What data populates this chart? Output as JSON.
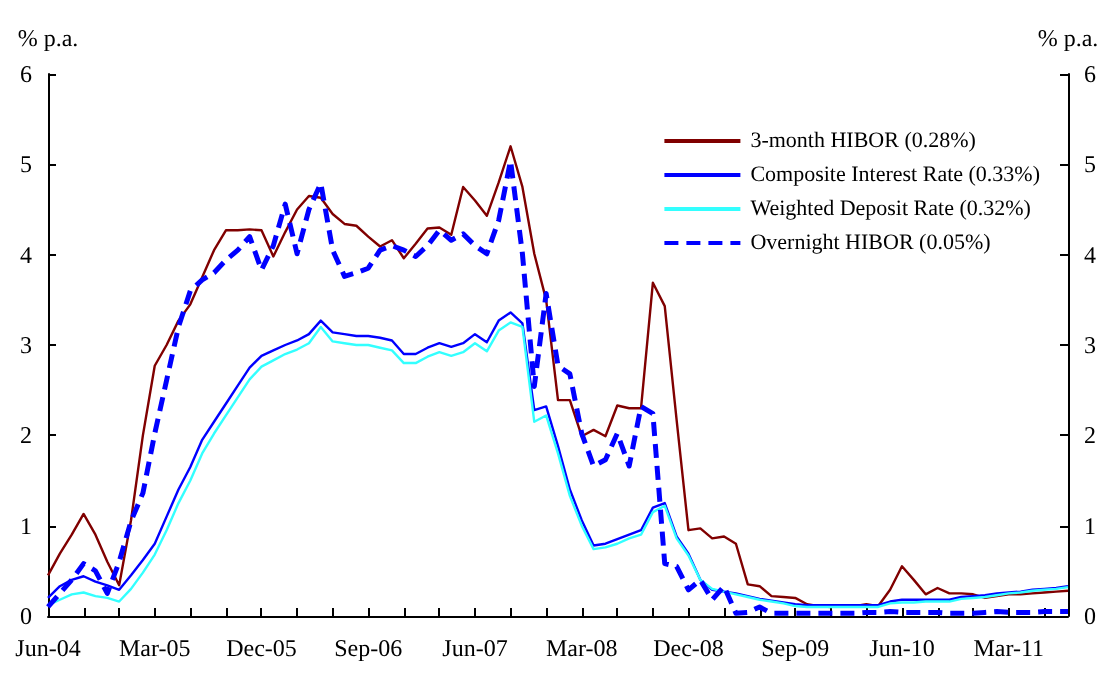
{
  "chart_data": {
    "type": "line",
    "ylabel": "% p.a.",
    "y2label": "% p.a.",
    "categories": [
      "Jun-04",
      null,
      null,
      null,
      null,
      null,
      null,
      null,
      null,
      "Mar-05",
      null,
      null,
      null,
      null,
      null,
      null,
      null,
      null,
      "Dec-05",
      null,
      null,
      null,
      null,
      null,
      null,
      null,
      null,
      "Sep-06",
      null,
      null,
      null,
      null,
      null,
      null,
      null,
      null,
      "Jun-07",
      null,
      null,
      null,
      null,
      null,
      null,
      null,
      null,
      "Mar-08",
      null,
      null,
      null,
      null,
      null,
      null,
      null,
      null,
      "Dec-08",
      null,
      null,
      null,
      null,
      null,
      null,
      null,
      null,
      "Sep-09",
      null,
      null,
      null,
      null,
      null,
      null,
      null,
      null,
      "Jun-10",
      null,
      null,
      null,
      null,
      null,
      null,
      null,
      null,
      "Mar-11",
      null,
      null,
      null,
      null,
      null
    ],
    "ylim": [
      0,
      6
    ],
    "yticks": [
      0,
      1,
      2,
      3,
      4,
      5,
      6
    ],
    "y2lim": [
      0,
      6
    ],
    "y2ticks": [
      0,
      1,
      2,
      3,
      4,
      5,
      6
    ],
    "grid": false,
    "legend": "top right",
    "marker": "none",
    "line_style": "solid",
    "series": [
      {
        "name": "3-month HIBOR (0.28%)",
        "color": "#800000",
        "values": [
          0.45,
          0.69,
          0.9,
          1.13,
          0.9,
          0.6,
          0.34,
          1.06,
          2.0,
          2.77,
          3.0,
          3.27,
          3.45,
          3.75,
          4.05,
          4.27,
          4.27,
          4.28,
          4.27,
          3.98,
          4.25,
          4.5,
          4.65,
          4.63,
          4.45,
          4.34,
          4.32,
          4.2,
          4.09,
          4.16,
          3.96,
          4.12,
          4.29,
          4.3,
          4.22,
          4.75,
          4.6,
          4.43,
          4.8,
          5.2,
          4.75,
          4.01,
          3.5,
          2.39,
          2.39,
          1.99,
          2.06,
          1.99,
          2.33,
          2.3,
          2.3,
          3.69,
          3.43,
          2.17,
          0.95,
          0.97,
          0.86,
          0.88,
          0.8,
          0.35,
          0.33,
          0.22,
          0.21,
          0.2,
          0.13,
          0.11,
          0.1,
          0.12,
          0.11,
          0.13,
          0.11,
          0.29,
          0.55,
          0.4,
          0.24,
          0.31,
          0.25,
          0.25,
          0.24,
          0.2,
          0.22,
          0.24,
          0.24,
          0.25,
          0.26,
          0.27,
          0.28
        ]
      },
      {
        "name": "Composite Interest Rate (0.33%)",
        "color": "#0000ff",
        "values": [
          0.2,
          0.33,
          0.4,
          0.44,
          0.38,
          0.34,
          0.29,
          0.45,
          0.62,
          0.8,
          1.1,
          1.4,
          1.65,
          1.95,
          2.15,
          2.35,
          2.55,
          2.75,
          2.88,
          2.94,
          3.0,
          3.05,
          3.12,
          3.27,
          3.14,
          3.12,
          3.1,
          3.1,
          3.08,
          3.05,
          2.9,
          2.9,
          2.97,
          3.02,
          2.98,
          3.02,
          3.12,
          3.03,
          3.27,
          3.36,
          3.24,
          2.28,
          2.32,
          1.88,
          1.4,
          1.06,
          0.78,
          0.8,
          0.85,
          0.9,
          0.95,
          1.2,
          1.25,
          0.88,
          0.69,
          0.4,
          0.29,
          0.27,
          0.25,
          0.22,
          0.19,
          0.17,
          0.15,
          0.13,
          0.12,
          0.12,
          0.12,
          0.12,
          0.12,
          0.12,
          0.12,
          0.16,
          0.18,
          0.18,
          0.18,
          0.18,
          0.18,
          0.21,
          0.22,
          0.23,
          0.25,
          0.26,
          0.27,
          0.29,
          0.3,
          0.31,
          0.33
        ]
      },
      {
        "name": "Weighted Deposit Rate (0.32%)",
        "color": "#33ffff",
        "values": [
          0.12,
          0.18,
          0.24,
          0.26,
          0.22,
          0.2,
          0.16,
          0.3,
          0.48,
          0.68,
          0.95,
          1.25,
          1.5,
          1.8,
          2.02,
          2.22,
          2.42,
          2.62,
          2.76,
          2.83,
          2.9,
          2.95,
          3.02,
          3.2,
          3.04,
          3.02,
          3.0,
          3.0,
          2.97,
          2.94,
          2.8,
          2.8,
          2.87,
          2.92,
          2.88,
          2.92,
          3.02,
          2.93,
          3.16,
          3.25,
          3.2,
          2.15,
          2.22,
          1.8,
          1.33,
          1.0,
          0.74,
          0.76,
          0.8,
          0.86,
          0.9,
          1.15,
          1.22,
          0.86,
          0.67,
          0.4,
          0.3,
          0.27,
          0.24,
          0.21,
          0.18,
          0.16,
          0.14,
          0.11,
          0.1,
          0.1,
          0.1,
          0.1,
          0.1,
          0.1,
          0.1,
          0.14,
          0.15,
          0.15,
          0.16,
          0.16,
          0.16,
          0.19,
          0.2,
          0.21,
          0.23,
          0.25,
          0.26,
          0.28,
          0.29,
          0.3,
          0.32
        ]
      },
      {
        "name": "Overnight HIBOR (0.05%)",
        "color": "#0000ff",
        "line_style": "dashed",
        "values": [
          0.1,
          0.25,
          0.4,
          0.58,
          0.5,
          0.25,
          0.6,
          1.05,
          1.36,
          2.02,
          2.61,
          3.2,
          3.6,
          3.72,
          3.8,
          3.94,
          4.05,
          4.2,
          3.83,
          4.1,
          4.56,
          4.01,
          4.5,
          4.79,
          4.05,
          3.76,
          3.8,
          3.85,
          4.05,
          4.1,
          4.05,
          3.98,
          4.1,
          4.27,
          4.16,
          4.23,
          4.1,
          4.01,
          4.38,
          5.04,
          4.01,
          2.54,
          3.57,
          2.77,
          2.68,
          2.02,
          1.66,
          1.73,
          2.02,
          1.66,
          2.32,
          2.24,
          0.58,
          0.55,
          0.29,
          0.4,
          0.18,
          0.33,
          0.03,
          0.04,
          0.1,
          0.03,
          0.03,
          0.03,
          0.03,
          0.03,
          0.03,
          0.03,
          0.03,
          0.04,
          0.04,
          0.05,
          0.04,
          0.04,
          0.04,
          0.04,
          0.03,
          0.03,
          0.03,
          0.04,
          0.05,
          0.04,
          0.04,
          0.04,
          0.05,
          0.05,
          0.05
        ]
      }
    ]
  }
}
